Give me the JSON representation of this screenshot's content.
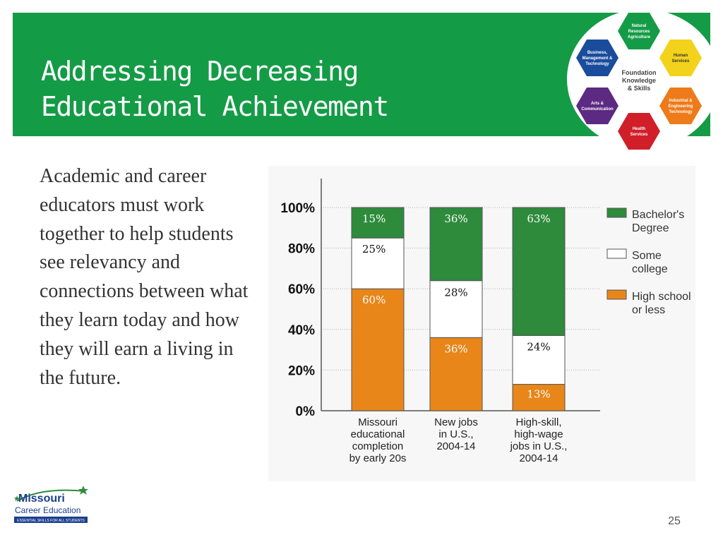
{
  "slide": {
    "title_line1": "Addressing Decreasing",
    "title_line2": "Educational Achievement",
    "body": "Academic and career educators must work together to help students see relevancy and connections between what they learn today and how they will earn a living in the future.",
    "page_number": "25",
    "accent_color": "#149b46"
  },
  "wheel": {
    "center_line1": "Foundation",
    "center_line2": "Knowledge",
    "center_line3": "& Skills",
    "segments": [
      {
        "lines": [
          "Natural",
          "Resources",
          "Agriculture"
        ],
        "color": "#149b46"
      },
      {
        "lines": [
          "Human",
          "Services"
        ],
        "color": "#f2d21b"
      },
      {
        "lines": [
          "Industrial &",
          "Engineering",
          "Technology"
        ],
        "color": "#ee7a1a"
      },
      {
        "lines": [
          "Health",
          "Services"
        ],
        "color": "#d11f2a"
      },
      {
        "lines": [
          "Arts &",
          "Communication"
        ],
        "color": "#5c2a82"
      },
      {
        "lines": [
          "Business,",
          "Management &",
          "Technology"
        ],
        "color": "#1a4c9c"
      }
    ]
  },
  "logo": {
    "line1": "Missouri",
    "line2": "Career Education",
    "tagline": "ESSENTIAL SKILLS FOR ALL STUDENTS"
  },
  "chart_data": {
    "type": "bar",
    "stacked": true,
    "categories": [
      [
        "Missouri",
        "educational",
        "completion",
        "by early 20s"
      ],
      [
        "New jobs",
        "in U.S.,",
        "2004-14"
      ],
      [
        "High-skill,",
        "high-wage",
        "jobs in U.S.,",
        "2004-14"
      ]
    ],
    "series": [
      {
        "name": "High school or less",
        "legend_lines": [
          "High school",
          "or less"
        ],
        "values": [
          60,
          36,
          13
        ],
        "labels": [
          "60%",
          "36%",
          "13%"
        ],
        "color": "#e8861a"
      },
      {
        "name": "Some college",
        "legend_lines": [
          "Some",
          "college"
        ],
        "values": [
          25,
          28,
          24
        ],
        "labels": [
          "25%",
          "28%",
          "24%"
        ],
        "color": "#ffffff"
      },
      {
        "name": "Bachelor's Degree",
        "legend_lines": [
          "Bachelor's",
          "Degree"
        ],
        "values": [
          15,
          36,
          63
        ],
        "labels": [
          "15%",
          "36%",
          "63%"
        ],
        "color": "#2e8b3c"
      }
    ],
    "yticks": [
      "0%",
      "20%",
      "40%",
      "60%",
      "80%",
      "100%"
    ],
    "ylim": [
      0,
      100
    ],
    "legend_position": "right",
    "grid": true
  }
}
